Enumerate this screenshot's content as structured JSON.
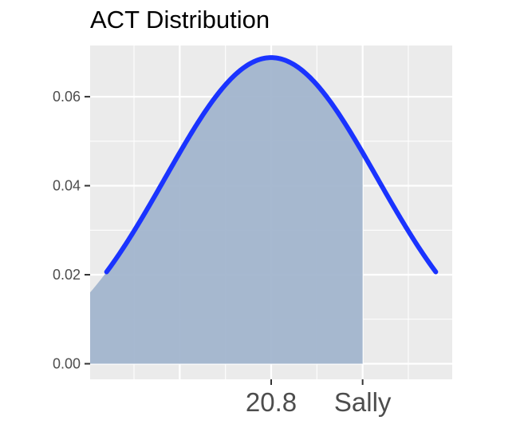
{
  "chart_data": {
    "type": "area",
    "title": "ACT Distribution",
    "xlabel": "",
    "ylabel": "",
    "distribution": {
      "kind": "normal",
      "mean": 20.8,
      "sd": 5.8
    },
    "xlim": [
      10.9,
      30.7
    ],
    "ylim": [
      -0.0035,
      0.0715
    ],
    "shaded_region": {
      "from": 10.9,
      "to": 25.8
    },
    "x_ticks": [
      {
        "value": 20.8,
        "label": "20.8"
      },
      {
        "value": 25.8,
        "label": "Sally"
      }
    ],
    "y_ticks": [
      {
        "value": 0.0,
        "label": "0.00"
      },
      {
        "value": 0.02,
        "label": "0.02"
      },
      {
        "value": 0.04,
        "label": "0.04"
      },
      {
        "value": 0.06,
        "label": "0.06"
      }
    ],
    "grid": true,
    "line_color": "#1a33ff",
    "fill_color": "#a2b5cd",
    "panel_background": "#ebebeb",
    "grid_color": "#ffffff"
  }
}
